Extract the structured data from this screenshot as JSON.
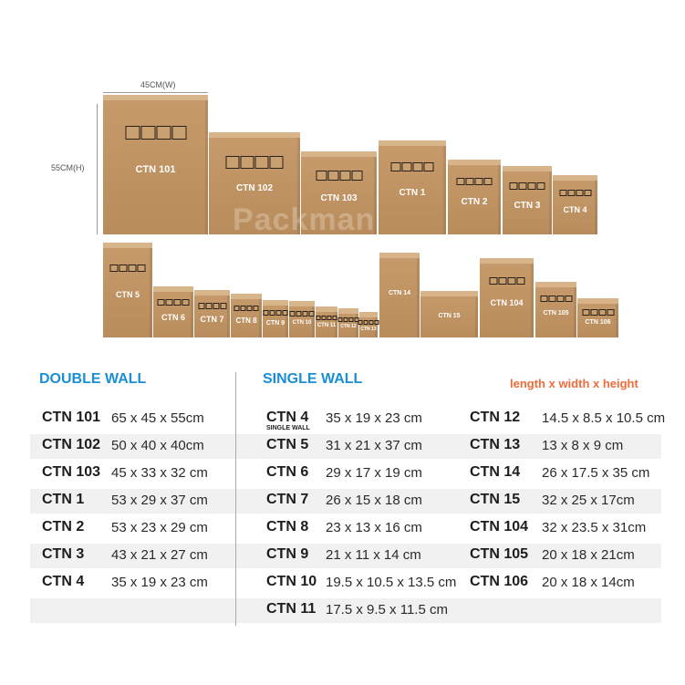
{
  "dimensions": {
    "width_label": "45CM(W)",
    "height_label": "55CM(H)"
  },
  "watermark": "Packman",
  "boxes": {
    "row1": [
      "CTN 101",
      "CTN 102",
      "CTN 103",
      "CTN 1",
      "CTN 2",
      "CTN 3",
      "CTN 4"
    ],
    "row2": [
      "CTN 5",
      "CTN 6",
      "CTN 7",
      "CTN 8",
      "CTN 9",
      "CTN 10",
      "CTN 11",
      "CTN 12",
      "CTN 13",
      "CTN 14",
      "CTN 15",
      "CTN 104",
      "CTN 105",
      "CTN 106"
    ]
  },
  "headers": {
    "double_wall": "DOUBLE WALL",
    "single_wall": "SINGLE WALL",
    "legend": "length x width x height"
  },
  "colors": {
    "header": "#1a8fd6",
    "legend": "#f26b3a",
    "box": "#bf9262"
  },
  "double_wall": [
    {
      "name": "CTN 101",
      "size": "65 x 45 x 55cm"
    },
    {
      "name": "CTN 102",
      "size": "50 x 40 x 40cm"
    },
    {
      "name": "CTN 103",
      "size": "45 x 33 x 32 cm"
    },
    {
      "name": "CTN 1",
      "size": "53 x 29 x 37 cm"
    },
    {
      "name": "CTN 2",
      "size": "53 x 23 x 29 cm"
    },
    {
      "name": "CTN 3",
      "size": "43 x 21 x 27 cm"
    },
    {
      "name": "CTN 4",
      "size": "35 x 19 x 23 cm"
    }
  ],
  "single_wall": [
    {
      "name": "CTN 4",
      "size": "35 x 19 x 23 cm",
      "note": "SINGLE WALL"
    },
    {
      "name": "CTN 5",
      "size": "31 x 21 x 37 cm"
    },
    {
      "name": "CTN 6",
      "size": "29 x 17 x 19 cm"
    },
    {
      "name": "CTN 7",
      "size": "26 x 15 x 18 cm"
    },
    {
      "name": "CTN 8",
      "size": "23 x 13 x 16 cm"
    },
    {
      "name": "CTN 9",
      "size": "21 x 11 x 14 cm"
    },
    {
      "name": "CTN 10",
      "size": "19.5 x 10.5 x 13.5 cm"
    },
    {
      "name": "CTN 11",
      "size": "17.5 x 9.5 x 11.5 cm"
    }
  ],
  "single_wall_2": [
    {
      "name": "CTN 12",
      "size": "14.5 x 8.5 x 10.5 cm"
    },
    {
      "name": "CTN 13",
      "size": "13 x 8 x 9 cm"
    },
    {
      "name": "CTN 14",
      "size": "26 x 17.5 x 35 cm"
    },
    {
      "name": "CTN 15",
      "size": "32 x 25 x 17cm"
    },
    {
      "name": "CTN 104",
      "size": "32 x 23.5 x 31cm"
    },
    {
      "name": "CTN 105",
      "size": "20 x 18 x 21cm"
    },
    {
      "name": "CTN 106",
      "size": "20 x 18 x 14cm"
    }
  ]
}
